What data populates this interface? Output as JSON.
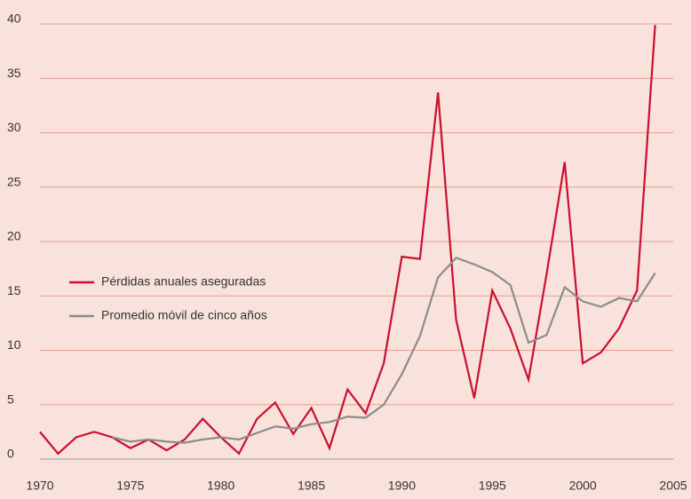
{
  "chart_data": {
    "type": "line",
    "x": [
      1970,
      1971,
      1972,
      1973,
      1974,
      1975,
      1976,
      1977,
      1978,
      1979,
      1980,
      1981,
      1982,
      1983,
      1984,
      1985,
      1986,
      1987,
      1988,
      1989,
      1990,
      1991,
      1992,
      1993,
      1994,
      1995,
      1996,
      1997,
      1998,
      1999,
      2000,
      2001,
      2002,
      2003,
      2004
    ],
    "series": [
      {
        "name": "Pérdidas anuales aseguradas",
        "color": "#c8102e",
        "values": [
          2.5,
          0.5,
          2.0,
          2.5,
          2.0,
          1.0,
          1.8,
          0.8,
          1.8,
          3.7,
          2.0,
          0.5,
          3.7,
          5.2,
          2.3,
          4.7,
          1.0,
          6.4,
          4.2,
          8.8,
          18.6,
          18.4,
          33.7,
          12.8,
          5.6,
          15.5,
          12.0,
          7.3,
          17.0,
          27.3,
          8.8,
          9.8,
          12.0,
          15.5,
          39.9
        ]
      },
      {
        "name": "Promedio móvil de cinco años",
        "color": "#8c8c8c",
        "values": [
          null,
          null,
          null,
          null,
          2.0,
          1.6,
          1.8,
          1.6,
          1.5,
          1.8,
          2.0,
          1.8,
          2.4,
          3.0,
          2.8,
          3.2,
          3.4,
          3.9,
          3.8,
          5.0,
          7.8,
          11.3,
          16.7,
          18.5,
          17.9,
          17.2,
          16.0,
          10.7,
          11.4,
          15.8,
          14.5,
          14.0,
          14.8,
          14.5,
          17.1
        ]
      }
    ],
    "xlim": [
      1970,
      2005
    ],
    "xticks": [
      1970,
      1975,
      1980,
      1985,
      1990,
      1995,
      2000,
      2005
    ],
    "ylim": [
      0,
      40
    ],
    "yticks": [
      0,
      5,
      10,
      15,
      20,
      25,
      30,
      35,
      40
    ],
    "grid": true,
    "legend": "left"
  }
}
